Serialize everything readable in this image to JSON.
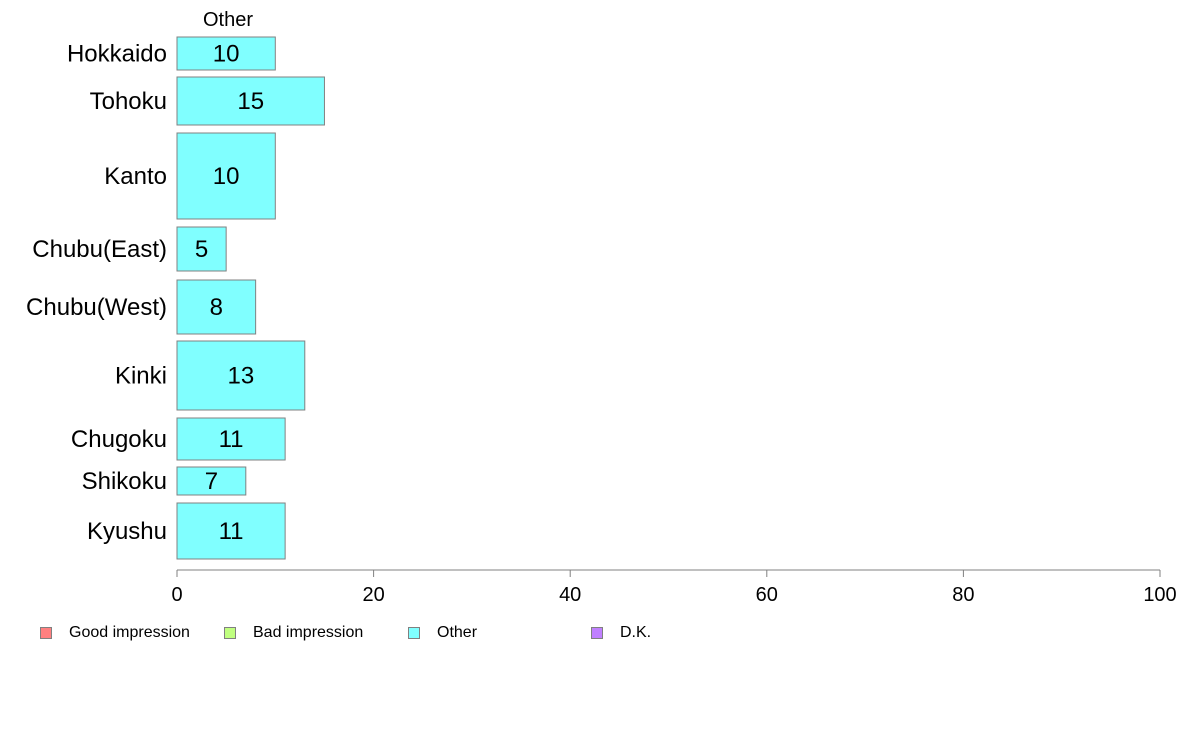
{
  "chart_data": {
    "type": "bar",
    "orientation": "horizontal",
    "panel_title": "Other",
    "categories": [
      "Hokkaido",
      "Tohoku",
      "Kanto",
      "Chubu(East)",
      "Chubu(West)",
      "Kinki",
      "Chugoku",
      "Shikoku",
      "Kyushu"
    ],
    "series": [
      {
        "name": "Other",
        "values": [
          10,
          15,
          10,
          5,
          8,
          13,
          11,
          7,
          11
        ],
        "color": "#80ffff"
      }
    ],
    "xlim": [
      0,
      100
    ],
    "xticks": [
      0,
      20,
      40,
      60,
      80,
      100
    ],
    "grid": false,
    "legend_position": "bottom-left",
    "legend": [
      {
        "label": "Good impression",
        "color": "#ff8080"
      },
      {
        "label": "Bad impression",
        "color": "#c0ff80"
      },
      {
        "label": "Other",
        "color": "#80ffff"
      },
      {
        "label": "D.K.",
        "color": "#c080ff"
      }
    ]
  }
}
